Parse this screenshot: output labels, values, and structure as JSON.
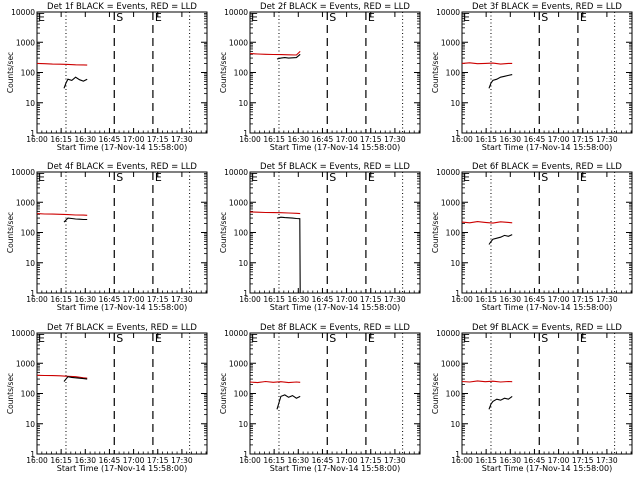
{
  "colors": {
    "events": "#000000",
    "lld": "#cc0000",
    "axes": "#000000",
    "background": "#ffffff"
  },
  "shared": {
    "ylabel": "Counts/sec",
    "xlabel": "Start Time (17-Nov-14 15:58:00)",
    "x_tick_labels": [
      "16:00",
      "16:15",
      "16:30",
      "16:45",
      "17:00",
      "17:15",
      "17:30"
    ],
    "y_tick_labels": [
      "1",
      "10",
      "100",
      "1000",
      "10000"
    ],
    "marker_s": "S",
    "marker_e": "E"
  },
  "chart_data": [
    {
      "type": "line",
      "title": "Det 1f BLACK = Events, RED = LLD",
      "x_unit": "minutes after 16:00",
      "xlim": [
        0,
        44
      ],
      "ylim": [
        1,
        10000
      ],
      "yscale": "log",
      "xticks": [
        0,
        6.25,
        12.5,
        18.75,
        25,
        31.25,
        37.5
      ],
      "dotted_lines": [
        7.5,
        39.5
      ],
      "dashed_lines": [
        20,
        30
      ],
      "marker_S_x": 20,
      "marker_E_x": 30,
      "series": [
        {
          "color": "red",
          "x": [
            0,
            2,
            4,
            6,
            8,
            10,
            12,
            13
          ],
          "y": [
            200,
            195,
            190,
            188,
            185,
            180,
            178,
            175
          ]
        },
        {
          "color": "black",
          "x": [
            7,
            7.5,
            8,
            9,
            10,
            11,
            12,
            13
          ],
          "y": [
            30,
            45,
            60,
            55,
            70,
            58,
            52,
            60
          ]
        }
      ]
    },
    {
      "type": "line",
      "title": "Det 2f BLACK = Events, RED = LLD",
      "x_unit": "minutes after 16:00",
      "xlim": [
        0,
        44
      ],
      "ylim": [
        1,
        10000
      ],
      "yscale": "log",
      "xticks": [
        0,
        6.25,
        12.5,
        18.75,
        25,
        31.25,
        37.5
      ],
      "dotted_lines": [
        7.5,
        39.5
      ],
      "dashed_lines": [
        20,
        30
      ],
      "marker_S_x": 20,
      "marker_E_x": 30,
      "series": [
        {
          "color": "red",
          "x": [
            0,
            2,
            4,
            6,
            8,
            10,
            12,
            13
          ],
          "y": [
            420,
            410,
            400,
            395,
            390,
            385,
            380,
            500
          ]
        },
        {
          "color": "black",
          "x": [
            7,
            8,
            9,
            10,
            11,
            12,
            13
          ],
          "y": [
            280,
            300,
            310,
            300,
            305,
            310,
            400
          ]
        }
      ]
    },
    {
      "type": "line",
      "title": "Det 3f BLACK = Events, RED = LLD",
      "x_unit": "minutes after 16:00",
      "xlim": [
        0,
        44
      ],
      "ylim": [
        1,
        10000
      ],
      "yscale": "log",
      "xticks": [
        0,
        6.25,
        12.5,
        18.75,
        25,
        31.25,
        37.5
      ],
      "dotted_lines": [
        7.5,
        39.5
      ],
      "dashed_lines": [
        20,
        30
      ],
      "marker_S_x": 20,
      "marker_E_x": 30,
      "series": [
        {
          "color": "red",
          "x": [
            0,
            2,
            4,
            6,
            8,
            10,
            12,
            13
          ],
          "y": [
            200,
            210,
            195,
            200,
            205,
            190,
            200,
            200
          ]
        },
        {
          "color": "black",
          "x": [
            7,
            7.5,
            8,
            9,
            10,
            11,
            12,
            13
          ],
          "y": [
            30,
            45,
            55,
            60,
            70,
            75,
            80,
            85
          ]
        }
      ]
    },
    {
      "type": "line",
      "title": "Det 4f BLACK = Events, RED = LLD",
      "x_unit": "minutes after 16:00",
      "xlim": [
        0,
        44
      ],
      "ylim": [
        1,
        10000
      ],
      "yscale": "log",
      "xticks": [
        0,
        6.25,
        12.5,
        18.75,
        25,
        31.25,
        37.5
      ],
      "dotted_lines": [
        7.5,
        39.5
      ],
      "dashed_lines": [
        20,
        30
      ],
      "marker_S_x": 20,
      "marker_E_x": 30,
      "series": [
        {
          "color": "red",
          "x": [
            0,
            2,
            4,
            6,
            8,
            10,
            12,
            13
          ],
          "y": [
            420,
            410,
            405,
            400,
            390,
            380,
            375,
            370
          ]
        },
        {
          "color": "black",
          "x": [
            7,
            8,
            9,
            10,
            11,
            12,
            13
          ],
          "y": [
            220,
            300,
            290,
            280,
            275,
            270,
            270
          ]
        }
      ]
    },
    {
      "type": "line",
      "title": "Det 5f BLACK = Events, RED = LLD",
      "x_unit": "minutes after 16:00",
      "xlim": [
        0,
        44
      ],
      "ylim": [
        1,
        10000
      ],
      "yscale": "log",
      "xticks": [
        0,
        6.25,
        12.5,
        18.75,
        25,
        31.25,
        37.5
      ],
      "dotted_lines": [
        7.5,
        39.5
      ],
      "dashed_lines": [
        20,
        30
      ],
      "marker_S_x": 20,
      "marker_E_x": 30,
      "series": [
        {
          "color": "red",
          "x": [
            0,
            2,
            4,
            6,
            8,
            10,
            12,
            13
          ],
          "y": [
            480,
            470,
            460,
            455,
            450,
            440,
            430,
            420
          ]
        },
        {
          "color": "black",
          "x": [
            7,
            8,
            9,
            10,
            11,
            12,
            12.9,
            13
          ],
          "y": [
            300,
            320,
            310,
            305,
            300,
            290,
            285,
            1
          ]
        }
      ]
    },
    {
      "type": "line",
      "title": "Det 6f BLACK = Events, RED = LLD",
      "x_unit": "minutes after 16:00",
      "xlim": [
        0,
        44
      ],
      "ylim": [
        1,
        10000
      ],
      "yscale": "log",
      "xticks": [
        0,
        6.25,
        12.5,
        18.75,
        25,
        31.25,
        37.5
      ],
      "dotted_lines": [
        7.5,
        39.5
      ],
      "dashed_lines": [
        20,
        30
      ],
      "marker_S_x": 20,
      "marker_E_x": 30,
      "series": [
        {
          "color": "red",
          "x": [
            0,
            2,
            4,
            6,
            8,
            10,
            12,
            13
          ],
          "y": [
            220,
            210,
            230,
            215,
            205,
            225,
            215,
            210
          ]
        },
        {
          "color": "black",
          "x": [
            7,
            7.5,
            8,
            9,
            10,
            11,
            12,
            13
          ],
          "y": [
            40,
            50,
            60,
            65,
            70,
            80,
            75,
            85
          ]
        }
      ]
    },
    {
      "type": "line",
      "title": "Det 7f BLACK = Events, RED = LLD",
      "x_unit": "minutes after 16:00",
      "xlim": [
        0,
        44
      ],
      "ylim": [
        1,
        10000
      ],
      "yscale": "log",
      "xticks": [
        0,
        6.25,
        12.5,
        18.75,
        25,
        31.25,
        37.5
      ],
      "dotted_lines": [
        7.5,
        39.5
      ],
      "dashed_lines": [
        20,
        30
      ],
      "marker_S_x": 20,
      "marker_E_x": 30,
      "series": [
        {
          "color": "red",
          "x": [
            0,
            2,
            4,
            6,
            8,
            10,
            12,
            13
          ],
          "y": [
            400,
            395,
            390,
            385,
            370,
            360,
            330,
            320
          ]
        },
        {
          "color": "black",
          "x": [
            7,
            8,
            9,
            10,
            11,
            12,
            13
          ],
          "y": [
            250,
            360,
            340,
            330,
            320,
            310,
            300
          ]
        }
      ]
    },
    {
      "type": "line",
      "title": "Det 8f BLACK = Events, RED = LLD",
      "x_unit": "minutes after 16:00",
      "xlim": [
        0,
        44
      ],
      "ylim": [
        1,
        10000
      ],
      "yscale": "log",
      "xticks": [
        0,
        6.25,
        12.5,
        18.75,
        25,
        31.25,
        37.5
      ],
      "dotted_lines": [
        7.5,
        39.5
      ],
      "dashed_lines": [
        20,
        30
      ],
      "marker_S_x": 20,
      "marker_E_x": 30,
      "series": [
        {
          "color": "red",
          "x": [
            0,
            2,
            4,
            6,
            8,
            10,
            12,
            13
          ],
          "y": [
            240,
            230,
            250,
            235,
            245,
            230,
            240,
            235
          ]
        },
        {
          "color": "black",
          "x": [
            7,
            7.5,
            8,
            9,
            10,
            11,
            12,
            13
          ],
          "y": [
            30,
            50,
            80,
            90,
            75,
            85,
            70,
            80
          ]
        }
      ]
    },
    {
      "type": "line",
      "title": "Det 9f BLACK = Events, RED = LLD",
      "x_unit": "minutes after 16:00",
      "xlim": [
        0,
        44
      ],
      "ylim": [
        1,
        10000
      ],
      "yscale": "log",
      "xticks": [
        0,
        6.25,
        12.5,
        18.75,
        25,
        31.25,
        37.5
      ],
      "dotted_lines": [
        7.5,
        39.5
      ],
      "dashed_lines": [
        20,
        30
      ],
      "marker_S_x": 20,
      "marker_E_x": 30,
      "series": [
        {
          "color": "red",
          "x": [
            0,
            2,
            4,
            6,
            8,
            10,
            12,
            13
          ],
          "y": [
            250,
            240,
            260,
            245,
            255,
            240,
            250,
            245
          ]
        },
        {
          "color": "black",
          "x": [
            7,
            7.5,
            8,
            9,
            10,
            11,
            12,
            13
          ],
          "y": [
            30,
            45,
            55,
            65,
            60,
            70,
            65,
            80
          ]
        }
      ]
    }
  ]
}
